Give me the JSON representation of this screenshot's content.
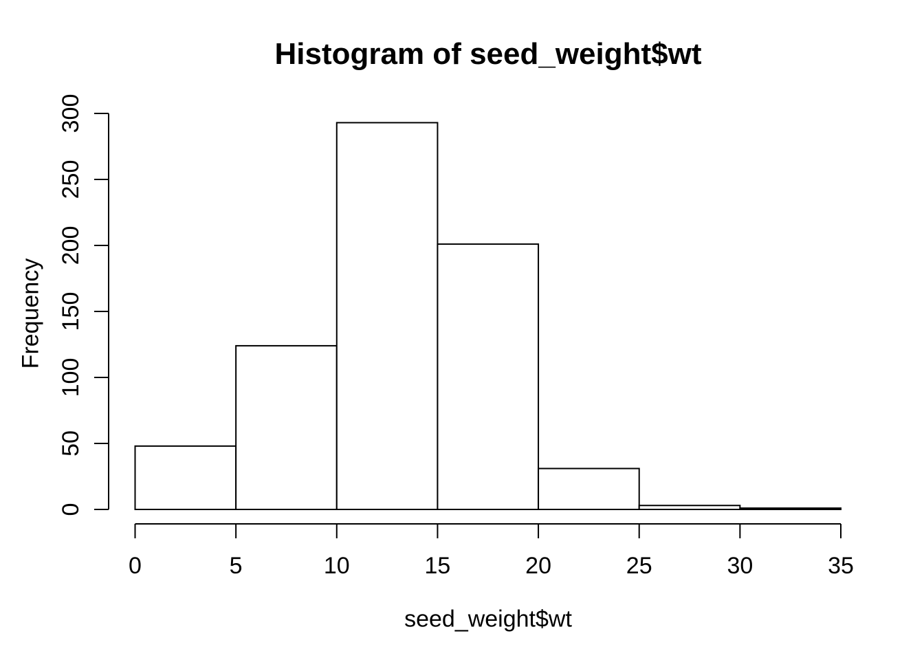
{
  "chart_data": {
    "type": "bar",
    "subtype": "histogram",
    "title": "Histogram of seed_weight$wt",
    "xlabel": "seed_weight$wt",
    "ylabel": "Frequency",
    "bin_edges": [
      0,
      5,
      10,
      15,
      20,
      25,
      30,
      35
    ],
    "counts": [
      48,
      124,
      293,
      201,
      31,
      3,
      1
    ],
    "x_ticks": [
      0,
      5,
      10,
      15,
      20,
      25,
      30,
      35
    ],
    "y_ticks": [
      0,
      50,
      100,
      150,
      200,
      250,
      300
    ],
    "xlim": [
      0,
      35
    ],
    "ylim": [
      0,
      300
    ],
    "grid": "off",
    "legend": "none",
    "bar_fill": "#ffffff",
    "bar_stroke": "#000000",
    "axis_color": "#000000",
    "background": "#ffffff"
  }
}
